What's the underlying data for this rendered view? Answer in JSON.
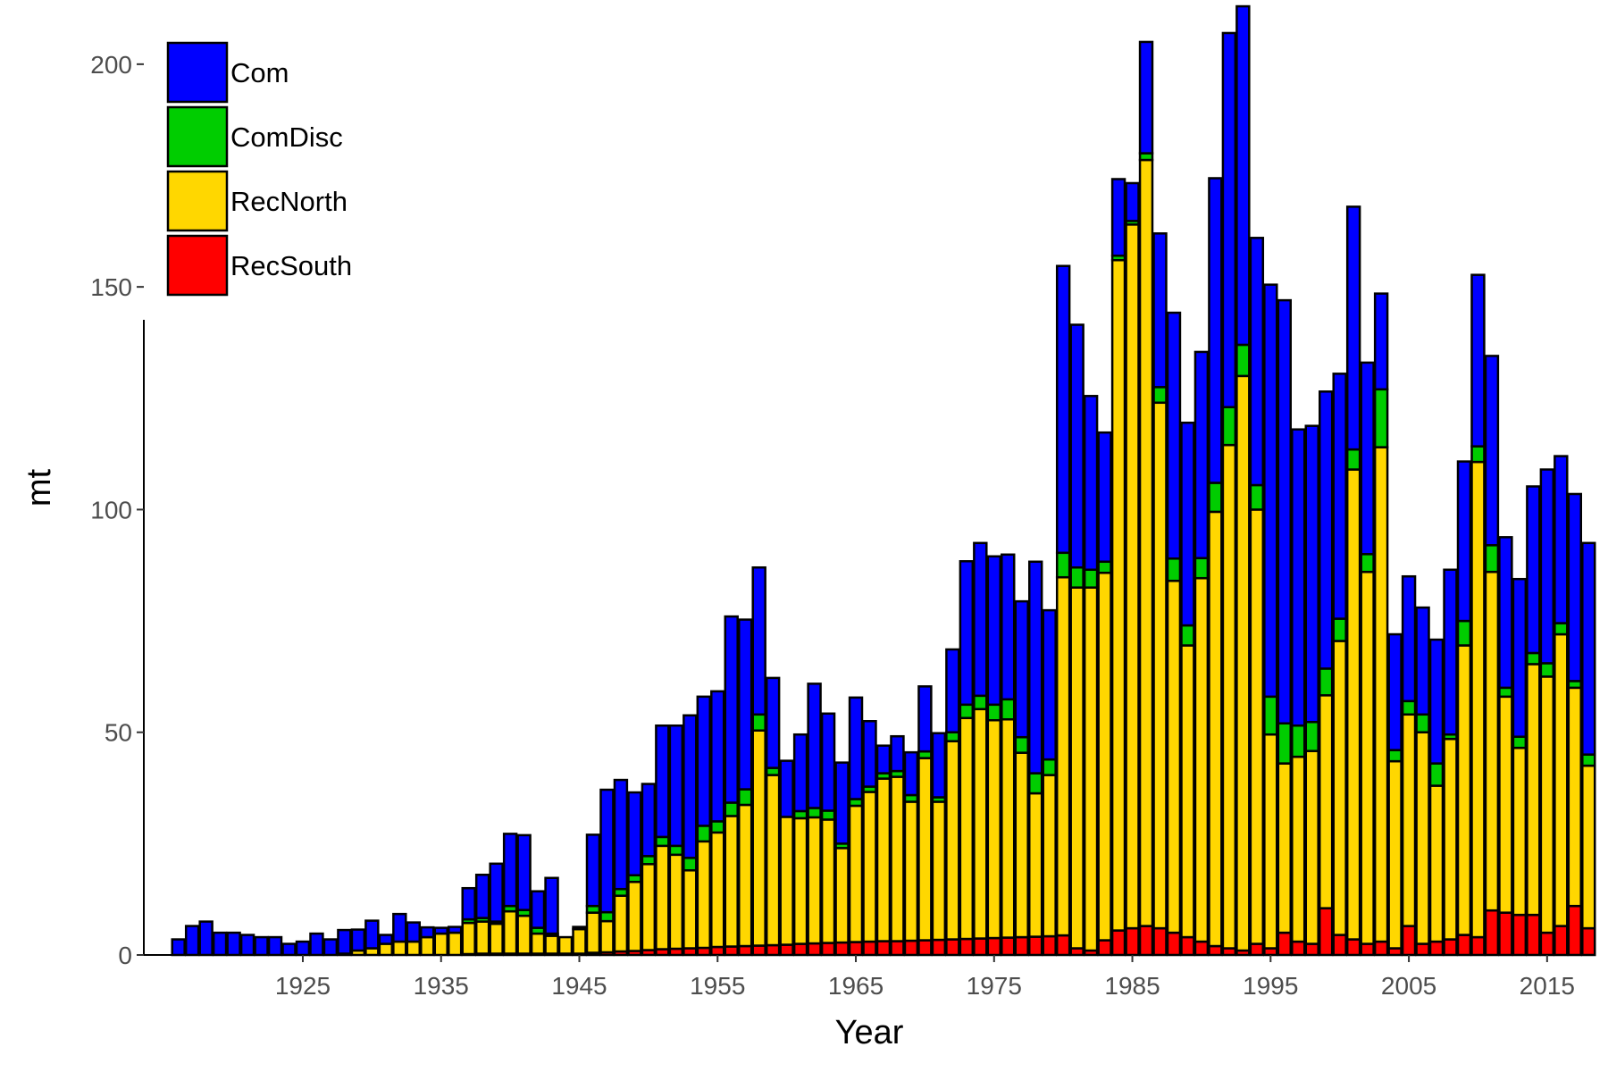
{
  "chart_data": {
    "type": "bar",
    "stacked": true,
    "title": "",
    "xlabel": "Year",
    "ylabel": "mt",
    "ylim": [
      0,
      210
    ],
    "xlim": [
      1913.5,
      2018.5
    ],
    "x_ticks": [
      1925,
      1935,
      1945,
      1955,
      1965,
      1975,
      1985,
      1995,
      2005,
      2015
    ],
    "y_ticks": [
      0,
      50,
      100,
      150,
      200
    ],
    "grid": false,
    "legend_position": "top-left",
    "legend": [
      "Com",
      "ComDisc",
      "RecNorth",
      "RecSouth"
    ],
    "colors": {
      "Com": "#0000FF",
      "ComDisc": "#00CD00",
      "RecNorth": "#FFD700",
      "RecSouth": "#FF0000"
    },
    "years": [
      1916,
      1917,
      1918,
      1919,
      1920,
      1921,
      1922,
      1923,
      1924,
      1925,
      1926,
      1927,
      1928,
      1929,
      1930,
      1931,
      1932,
      1933,
      1934,
      1935,
      1936,
      1937,
      1938,
      1939,
      1940,
      1941,
      1942,
      1943,
      1944,
      1945,
      1946,
      1947,
      1948,
      1949,
      1950,
      1951,
      1952,
      1953,
      1954,
      1955,
      1956,
      1957,
      1958,
      1959,
      1960,
      1961,
      1962,
      1963,
      1964,
      1965,
      1966,
      1967,
      1968,
      1969,
      1970,
      1971,
      1972,
      1973,
      1974,
      1975,
      1976,
      1977,
      1978,
      1979,
      1980,
      1981,
      1982,
      1983,
      1984,
      1985,
      1986,
      1987,
      1988,
      1989,
      1990,
      1991,
      1992,
      1993,
      1994,
      1995,
      1996,
      1997,
      1998,
      1999,
      2000,
      2001,
      2002,
      2003,
      2004,
      2005,
      2006,
      2007,
      2008,
      2009,
      2010,
      2011,
      2012,
      2013,
      2014,
      2015,
      2016,
      2017,
      2018
    ],
    "series": [
      {
        "name": "RecSouth",
        "values": [
          0,
          0,
          0,
          0,
          0,
          0,
          0,
          0,
          0,
          0,
          0,
          0,
          0,
          0,
          0,
          0,
          0,
          0,
          0,
          0,
          0,
          0.2,
          0.3,
          0.3,
          0.3,
          0.3,
          0.3,
          0.3,
          0.3,
          0.3,
          0.5,
          0.6,
          0.8,
          0.9,
          1.1,
          1.3,
          1.4,
          1.5,
          1.6,
          1.8,
          1.9,
          2.0,
          2.1,
          2.2,
          2.3,
          2.5,
          2.6,
          2.7,
          2.8,
          2.9,
          3.0,
          3.1,
          3.1,
          3.2,
          3.3,
          3.4,
          3.5,
          3.6,
          3.7,
          3.8,
          3.9,
          4.0,
          4.1,
          4.2,
          4.4,
          1.5,
          1,
          3.3,
          5.5,
          6,
          6.5,
          6,
          5,
          4,
          3,
          2,
          1.5,
          1,
          2.5,
          1.5,
          5,
          3,
          2.5,
          10.5,
          4.5,
          3.5,
          2.5,
          3,
          1.5,
          6.5,
          2.5,
          3,
          3.5,
          4.5,
          4,
          10,
          9.5,
          9,
          9,
          5,
          6.5,
          11,
          6
        ]
      },
      {
        "name": "RecNorth",
        "values": [
          0,
          0,
          0,
          0,
          0,
          0,
          0,
          0,
          0,
          0,
          0,
          0,
          0.3,
          1,
          1.5,
          2.5,
          3,
          3,
          4,
          4.8,
          5,
          7,
          7.2,
          6.7,
          9.5,
          8.5,
          4.5,
          4,
          3.7,
          5.5,
          9,
          7,
          12.5,
          15.5,
          19.3,
          23.2,
          21.1,
          17.5,
          23.9,
          25.7,
          29.3,
          31.7,
          48.3,
          38.2,
          28.7,
          28.2,
          28.3,
          27.7,
          21.2,
          30.6,
          33.6,
          36.5,
          36.9,
          31.2,
          40.9,
          31.0,
          44.5,
          49.6,
          51.5,
          48.9,
          49.0,
          41.4,
          32.2,
          36.2,
          80.4,
          81,
          81.5,
          82.5,
          150.5,
          158,
          172,
          118,
          79,
          65.5,
          81.6,
          97.5,
          113,
          129,
          97.5,
          48,
          38,
          41.5,
          43.3,
          47.8,
          66,
          105.5,
          83.5,
          111,
          42,
          47.5,
          47.5,
          35,
          45,
          65,
          106.7,
          76,
          48.5,
          37.5,
          56.3,
          57.5,
          65.5,
          49,
          36.5
        ]
      },
      {
        "name": "ComDisc",
        "values": [
          0,
          0,
          0,
          0,
          0,
          0,
          0,
          0,
          0,
          0,
          0,
          0,
          0,
          0,
          0,
          0,
          0,
          0,
          0,
          0,
          0,
          0.8,
          0.8,
          0.5,
          1.2,
          1.3,
          1.3,
          0.5,
          0,
          0,
          1.5,
          2,
          1.5,
          1.5,
          1.8,
          2,
          2,
          2.8,
          3.5,
          2.5,
          3,
          3.5,
          3.6,
          1.6,
          0,
          1.6,
          2.1,
          2,
          1,
          1.5,
          1.2,
          1.2,
          1.3,
          1.5,
          1.5,
          1,
          2,
          3,
          3,
          3.5,
          4.5,
          3.5,
          4.5,
          3.5,
          5.5,
          4.5,
          4,
          2.5,
          1,
          0.8,
          1.5,
          3.5,
          5,
          4.5,
          4.5,
          6.5,
          8.5,
          7,
          5.5,
          8.5,
          9,
          7,
          6.5,
          6,
          5,
          4.5,
          4,
          13,
          2.5,
          3,
          4,
          5,
          1,
          5.5,
          3.5,
          6,
          2,
          2.5,
          2.5,
          3,
          2.5,
          1.5,
          2.5
        ]
      },
      {
        "name": "Com",
        "values": [
          3.5,
          6.5,
          7.5,
          5,
          5,
          4.5,
          4,
          4,
          2.5,
          3,
          4.8,
          3.5,
          5.3,
          4.7,
          6.2,
          2,
          6.2,
          4.3,
          2.2,
          1.3,
          1.3,
          7,
          9.7,
          13,
          16.2,
          16.8,
          8.2,
          12.5,
          0,
          0.5,
          16,
          27.5,
          24.5,
          18.6,
          16.2,
          25,
          27,
          32,
          29,
          29.2,
          41.8,
          38.1,
          33,
          20.2,
          12.6,
          17.2,
          27.9,
          21.8,
          18.2,
          22.8,
          14.7,
          6.2,
          7.8,
          9.6,
          14.6,
          14.4,
          18.6,
          32.2,
          34.3,
          33.3,
          32.5,
          30.5,
          47.5,
          33.5,
          64.4,
          54.5,
          39.0,
          29,
          17.2,
          8.5,
          25,
          34.5,
          55.2,
          45.5,
          46.3,
          68.4,
          84,
          76,
          55.5,
          92.5,
          95,
          66.5,
          66.5,
          62.2,
          55,
          54.5,
          43,
          21.5,
          26,
          28,
          24,
          27.8,
          37,
          35.8,
          38.5,
          42.5,
          33.8,
          35.4,
          37.4,
          43.5,
          37.5,
          42,
          47.5
        ]
      }
    ]
  }
}
